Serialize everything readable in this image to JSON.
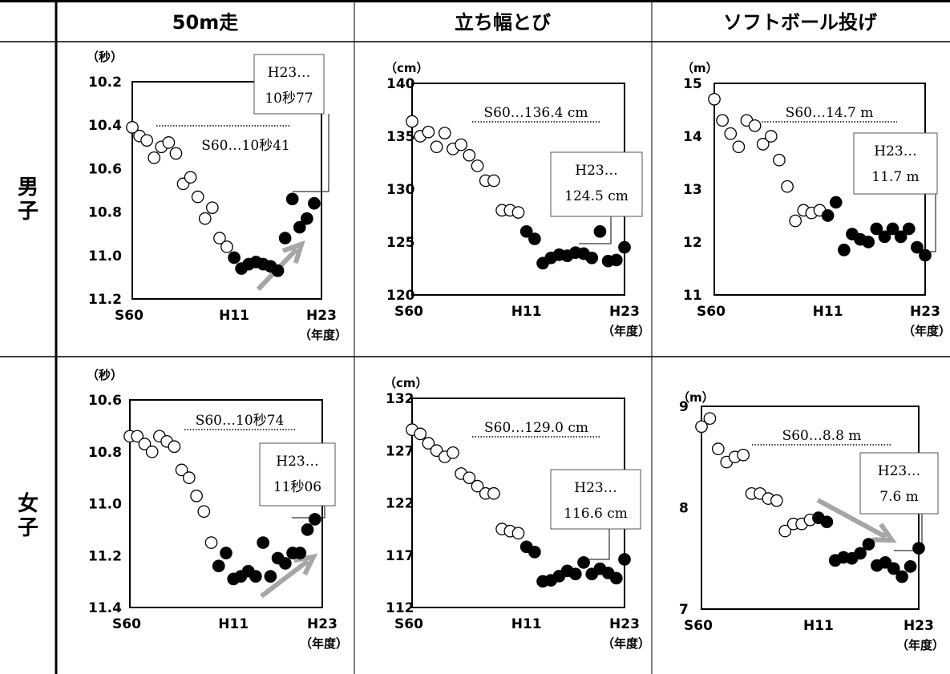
{
  "table": {
    "columns": [
      "50m走",
      "立ち幅とび",
      "ソフトボール投げ"
    ],
    "rows": [
      "男子",
      "女子"
    ]
  },
  "legend": {
    "open_marker": "S60〜H11 (open circles)",
    "filled_marker": "H12〜H23 (filled circles)"
  },
  "colors": {
    "grid_line": "#000000",
    "arrow": "#a6a6a6",
    "open_fill": "#ffffff",
    "filled_fill": "#000000"
  },
  "chart_data": [
    {
      "id": "boys-50m",
      "type": "scatter",
      "title": "50m走",
      "row": "男子",
      "y_unit": "（秒）",
      "x_unit": "（年度）",
      "x_tick_labels": [
        "S60",
        "H11",
        "H23"
      ],
      "y_tick_labels": [
        "10.2",
        "10.4",
        "10.6",
        "10.8",
        "11.0",
        "11.2"
      ],
      "ylim": [
        10.2,
        11.2
      ],
      "y_inverted": true,
      "xlim": [
        1985,
        2011
      ],
      "ref_label": "S60…10秒41",
      "ref_value": 10.41,
      "end_label_lines": [
        "H23…",
        "10秒77"
      ],
      "arrow": "up",
      "x": [
        1985,
        1986,
        1987,
        1988,
        1989,
        1990,
        1991,
        1992,
        1993,
        1994,
        1995,
        1996,
        1997,
        1998,
        1999,
        2000,
        2001,
        2002,
        2003,
        2004,
        2005,
        2006,
        2007,
        2008,
        2009,
        2010,
        2011
      ],
      "y": [
        10.41,
        10.45,
        10.47,
        10.55,
        10.5,
        10.48,
        10.53,
        10.67,
        10.64,
        10.73,
        10.83,
        10.78,
        10.92,
        10.96,
        11.01,
        11.06,
        11.04,
        11.03,
        11.04,
        11.05,
        11.07,
        10.92,
        10.74,
        10.87,
        10.83,
        10.76,
        null
      ],
      "filled_from": 1999
    },
    {
      "id": "boys-jump",
      "type": "scatter",
      "title": "立ち幅とび",
      "row": "男子",
      "y_unit": "（cm）",
      "x_unit": "（年度）",
      "x_tick_labels": [
        "S60",
        "H11",
        "H23"
      ],
      "y_tick_labels": [
        "120",
        "125",
        "130",
        "135",
        "140"
      ],
      "ylim": [
        120,
        140
      ],
      "y_inverted": false,
      "xlim": [
        1985,
        2011
      ],
      "ref_label": "S60…136.4 cm",
      "ref_value": 136.4,
      "end_label_lines": [
        "H23…",
        "124.5 cm"
      ],
      "arrow": "none",
      "x": [
        1985,
        1986,
        1987,
        1988,
        1989,
        1990,
        1991,
        1992,
        1993,
        1994,
        1995,
        1996,
        1997,
        1998,
        1999,
        2000,
        2001,
        2002,
        2003,
        2004,
        2005,
        2006,
        2007,
        2008,
        2009,
        2010,
        2011
      ],
      "y": [
        136.4,
        135,
        135.4,
        134,
        135.3,
        133.8,
        134.2,
        133.2,
        132.2,
        130.8,
        130.8,
        128,
        128,
        127.8,
        126,
        125.3,
        123,
        123.5,
        123.8,
        123.7,
        124,
        123.9,
        123.5,
        126,
        123.2,
        123.3,
        124.5
      ],
      "filled_from": 1999
    },
    {
      "id": "boys-throw",
      "type": "scatter",
      "title": "ソフトボール投げ",
      "row": "男子",
      "y_unit": "（m）",
      "x_unit": "（年度）",
      "x_tick_labels": [
        "S60",
        "H11",
        "H23"
      ],
      "y_tick_labels": [
        "11",
        "12",
        "13",
        "14",
        "15"
      ],
      "ylim": [
        11,
        15
      ],
      "y_inverted": false,
      "xlim": [
        1985,
        2011
      ],
      "ref_label": "S60…14.7 m",
      "ref_value": 14.7,
      "end_label_lines": [
        "H23…",
        "11.7 m"
      ],
      "arrow": "none",
      "x": [
        1985,
        1986,
        1987,
        1988,
        1989,
        1990,
        1991,
        1992,
        1993,
        1994,
        1995,
        1996,
        1997,
        1998,
        1999,
        2000,
        2001,
        2002,
        2003,
        2004,
        2005,
        2006,
        2007,
        2008,
        2009,
        2010,
        2011
      ],
      "y": [
        14.7,
        14.3,
        14.05,
        13.8,
        14.3,
        14.2,
        13.85,
        14,
        13.55,
        13.05,
        12.4,
        12.6,
        12.55,
        12.6,
        12.5,
        12.75,
        11.85,
        12.15,
        12.05,
        12,
        12.25,
        12.1,
        12.25,
        12.1,
        12.25,
        11.9,
        11.75
      ],
      "filled_from": 1999
    },
    {
      "id": "girls-50m",
      "type": "scatter",
      "title": "50m走",
      "row": "女子",
      "y_unit": "（秒）",
      "x_unit": "（年度）",
      "x_tick_labels": [
        "S60",
        "H11",
        "H23"
      ],
      "y_tick_labels": [
        "10.6",
        "10.8",
        "11.0",
        "11.2",
        "11.4"
      ],
      "ylim": [
        10.6,
        11.4
      ],
      "y_inverted": true,
      "xlim": [
        1985,
        2011
      ],
      "ref_label": "S60…10秒74",
      "ref_value": 10.74,
      "end_label_lines": [
        "H23…",
        "11秒06"
      ],
      "arrow": "up",
      "x": [
        1985,
        1986,
        1987,
        1988,
        1989,
        1990,
        1991,
        1992,
        1993,
        1994,
        1995,
        1996,
        1997,
        1998,
        1999,
        2000,
        2001,
        2002,
        2003,
        2004,
        2005,
        2006,
        2007,
        2008,
        2009,
        2010,
        2011
      ],
      "y": [
        10.74,
        10.74,
        10.77,
        10.8,
        10.74,
        10.76,
        10.78,
        10.87,
        10.9,
        10.97,
        11.03,
        11.15,
        11.24,
        11.19,
        11.29,
        11.28,
        11.26,
        11.28,
        11.15,
        11.28,
        11.21,
        11.23,
        11.19,
        11.19,
        11.1,
        11.06,
        null
      ],
      "filled_from": 1997
    },
    {
      "id": "girls-jump",
      "type": "scatter",
      "title": "立ち幅とび",
      "row": "女子",
      "y_unit": "（cm）",
      "x_unit": "（年度）",
      "x_tick_labels": [
        "S60",
        "H11",
        "H23"
      ],
      "y_tick_labels": [
        "112",
        "117",
        "122",
        "127",
        "132"
      ],
      "ylim": [
        112,
        132
      ],
      "y_inverted": false,
      "xlim": [
        1985,
        2011
      ],
      "ref_label": "S60…129.0 cm",
      "ref_value": 129.0,
      "end_label_lines": [
        "H23…",
        "116.6 cm"
      ],
      "arrow": "none",
      "x": [
        1985,
        1986,
        1987,
        1988,
        1989,
        1990,
        1991,
        1992,
        1993,
        1994,
        1995,
        1996,
        1997,
        1998,
        1999,
        2000,
        2001,
        2002,
        2003,
        2004,
        2005,
        2006,
        2007,
        2008,
        2009,
        2010,
        2011
      ],
      "y": [
        129,
        128.6,
        127.7,
        127,
        126.4,
        126.8,
        124.8,
        124.4,
        123.6,
        122.9,
        122.9,
        119.5,
        119.3,
        119.1,
        117.8,
        117.3,
        114.5,
        114.6,
        115,
        115.5,
        115.2,
        116.3,
        115.2,
        115.7,
        115.3,
        114.8,
        116.6
      ],
      "filled_from": 1999
    },
    {
      "id": "girls-throw",
      "type": "scatter",
      "title": "ソフトボール投げ",
      "row": "女子",
      "y_unit": "（m）",
      "x_unit": "（年度）",
      "x_tick_labels": [
        "S60",
        "H11",
        "H23"
      ],
      "y_tick_labels": [
        "7",
        "8",
        "9"
      ],
      "ylim": [
        7,
        9
      ],
      "y_inverted": false,
      "xlim": [
        1985,
        2011
      ],
      "ref_label": "S60…8.8 m",
      "ref_value": 8.8,
      "end_label_lines": [
        "H23…",
        "7.6 m"
      ],
      "arrow": "down",
      "x": [
        1985,
        1986,
        1987,
        1988,
        1989,
        1990,
        1991,
        1992,
        1993,
        1994,
        1995,
        1996,
        1997,
        1998,
        1999,
        2000,
        2001,
        2002,
        2003,
        2004,
        2005,
        2006,
        2007,
        2008,
        2009,
        2010,
        2011
      ],
      "y": [
        8.8,
        8.88,
        8.58,
        8.45,
        8.5,
        8.52,
        8.14,
        8.14,
        8.09,
        8.07,
        7.77,
        7.84,
        7.84,
        7.88,
        7.9,
        7.86,
        7.48,
        7.51,
        7.5,
        7.55,
        7.64,
        7.43,
        7.46,
        7.4,
        7.32,
        7.42,
        7.6
      ],
      "filled_from": 1999
    }
  ]
}
